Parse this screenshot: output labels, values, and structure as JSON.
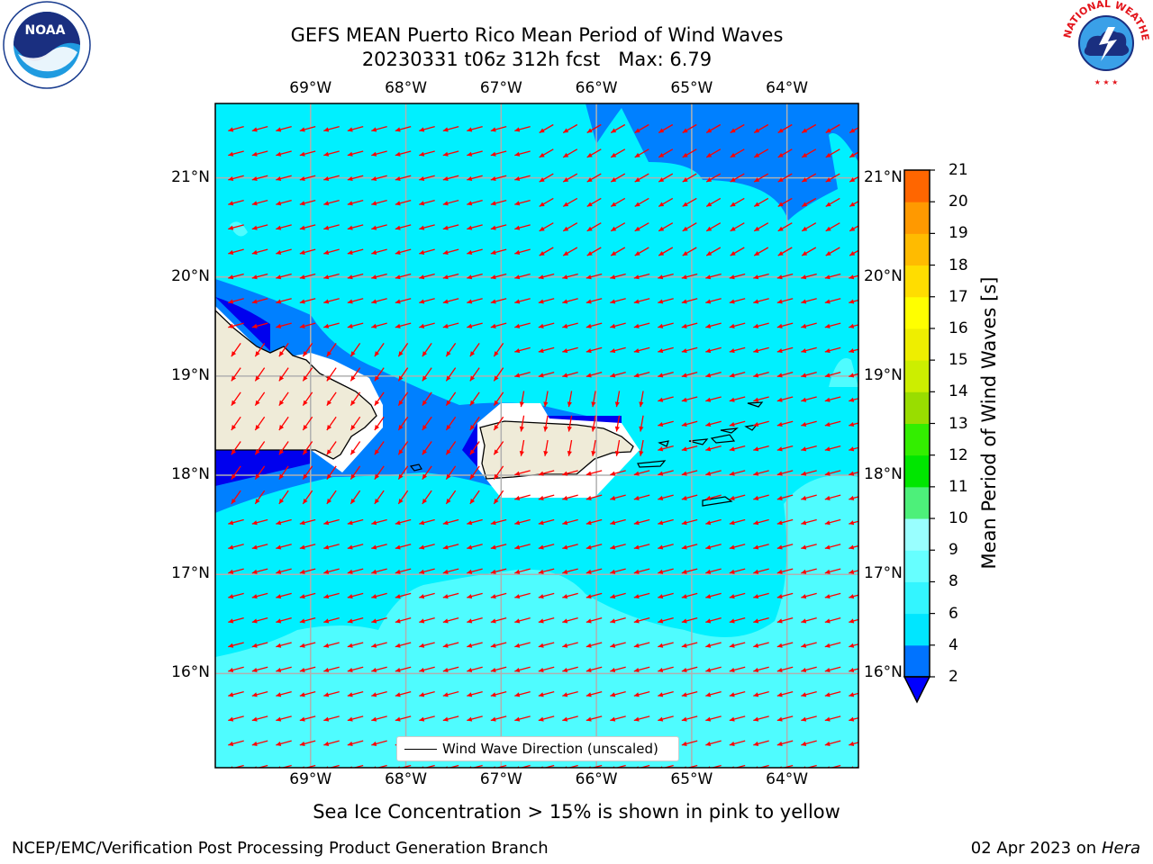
{
  "header": {
    "title_line1": "GEFS MEAN Puerto Rico Mean Period of Wind Waves",
    "title_line2": "20230331 t06z 312h fcst   Max: 6.79"
  },
  "logos": {
    "left": "noaa-logo",
    "right": "nws-logo",
    "left_text": "NATIONAL OCEANIC AND ATMOSPHERIC ADMINISTRATION · U.S. DEPARTMENT OF COMMERCE",
    "right_text": "NATIONAL WEATHER SERVICE"
  },
  "map": {
    "lon_labels": [
      "69°W",
      "68°W",
      "67°W",
      "66°W",
      "65°W",
      "64°W"
    ],
    "lat_labels": [
      "21°N",
      "20°N",
      "19°N",
      "18°N",
      "17°N",
      "16°N"
    ],
    "lon_values": [
      -69,
      -68,
      -67,
      -66,
      -65,
      -64
    ],
    "lat_values": [
      21,
      20,
      19,
      18,
      17,
      16
    ],
    "extent": {
      "lon_min": -70,
      "lon_max": -63.25,
      "lat_min": 15.05,
      "lat_max": 21.75
    },
    "vector_legend": "Wind Wave Direction (unscaled)",
    "vector_color": "#ff0000",
    "land_color": "#efebd8"
  },
  "colorbar": {
    "title": "Mean Period of Wind Waves [s]",
    "ticks": [
      "2",
      "4",
      "6",
      "8",
      "9",
      "10",
      "11",
      "12",
      "13",
      "14",
      "15",
      "16",
      "17",
      "18",
      "19",
      "20",
      "21"
    ],
    "colors": [
      "#0073ff",
      "#00e6ff",
      "#33f5ff",
      "#66ffff",
      "#99ffff",
      "#4df07a",
      "#00e600",
      "#33ee00",
      "#99dd00",
      "#ccee00",
      "#eeee00",
      "#ffff00",
      "#ffdd00",
      "#ffbb00",
      "#ff9900",
      "#ff6600",
      "#ff3300",
      "#ff0000"
    ],
    "under_color": "#0000ff"
  },
  "ice_note": "Sea Ice Concentration > 15% is shown in pink to yellow",
  "footer": {
    "left": "NCEP/EMC/Verification Post Processing Product Generation Branch",
    "right_date": "02 Apr 2023 on ",
    "right_host": "Hera"
  }
}
